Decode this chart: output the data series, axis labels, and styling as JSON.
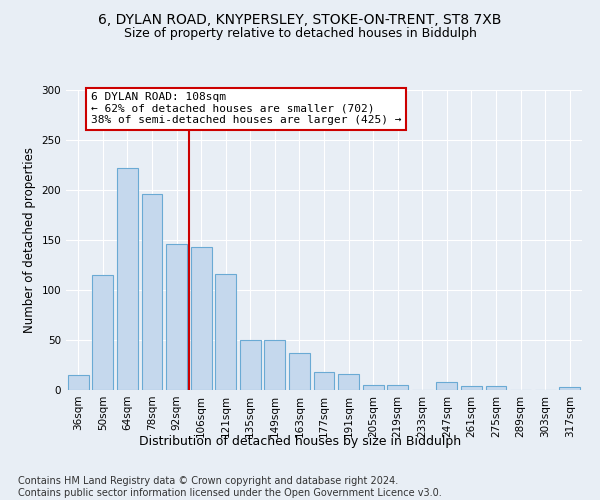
{
  "title1": "6, DYLAN ROAD, KNYPERSLEY, STOKE-ON-TRENT, ST8 7XB",
  "title2": "Size of property relative to detached houses in Biddulph",
  "xlabel": "Distribution of detached houses by size in Biddulph",
  "ylabel": "Number of detached properties",
  "categories": [
    "36sqm",
    "50sqm",
    "64sqm",
    "78sqm",
    "92sqm",
    "106sqm",
    "121sqm",
    "135sqm",
    "149sqm",
    "163sqm",
    "177sqm",
    "191sqm",
    "205sqm",
    "219sqm",
    "233sqm",
    "247sqm",
    "261sqm",
    "275sqm",
    "289sqm",
    "303sqm",
    "317sqm"
  ],
  "values": [
    15,
    115,
    222,
    196,
    146,
    143,
    116,
    50,
    50,
    37,
    18,
    16,
    5,
    5,
    0,
    8,
    4,
    4,
    0,
    0,
    3
  ],
  "bar_color": "#c5d8ed",
  "bar_edge_color": "#6aaad4",
  "vline_color": "#cc0000",
  "vline_index": 5,
  "annotation_text": "6 DYLAN ROAD: 108sqm\n← 62% of detached houses are smaller (702)\n38% of semi-detached houses are larger (425) →",
  "annotation_box_color": "#ffffff",
  "annotation_box_edge": "#cc0000",
  "ylim": [
    0,
    300
  ],
  "yticks": [
    0,
    50,
    100,
    150,
    200,
    250,
    300
  ],
  "background_color": "#e8eef5",
  "footer": "Contains HM Land Registry data © Crown copyright and database right 2024.\nContains public sector information licensed under the Open Government Licence v3.0.",
  "title1_fontsize": 10,
  "title2_fontsize": 9,
  "xlabel_fontsize": 9,
  "ylabel_fontsize": 8.5,
  "tick_fontsize": 7.5,
  "footer_fontsize": 7,
  "ann_fontsize": 8
}
